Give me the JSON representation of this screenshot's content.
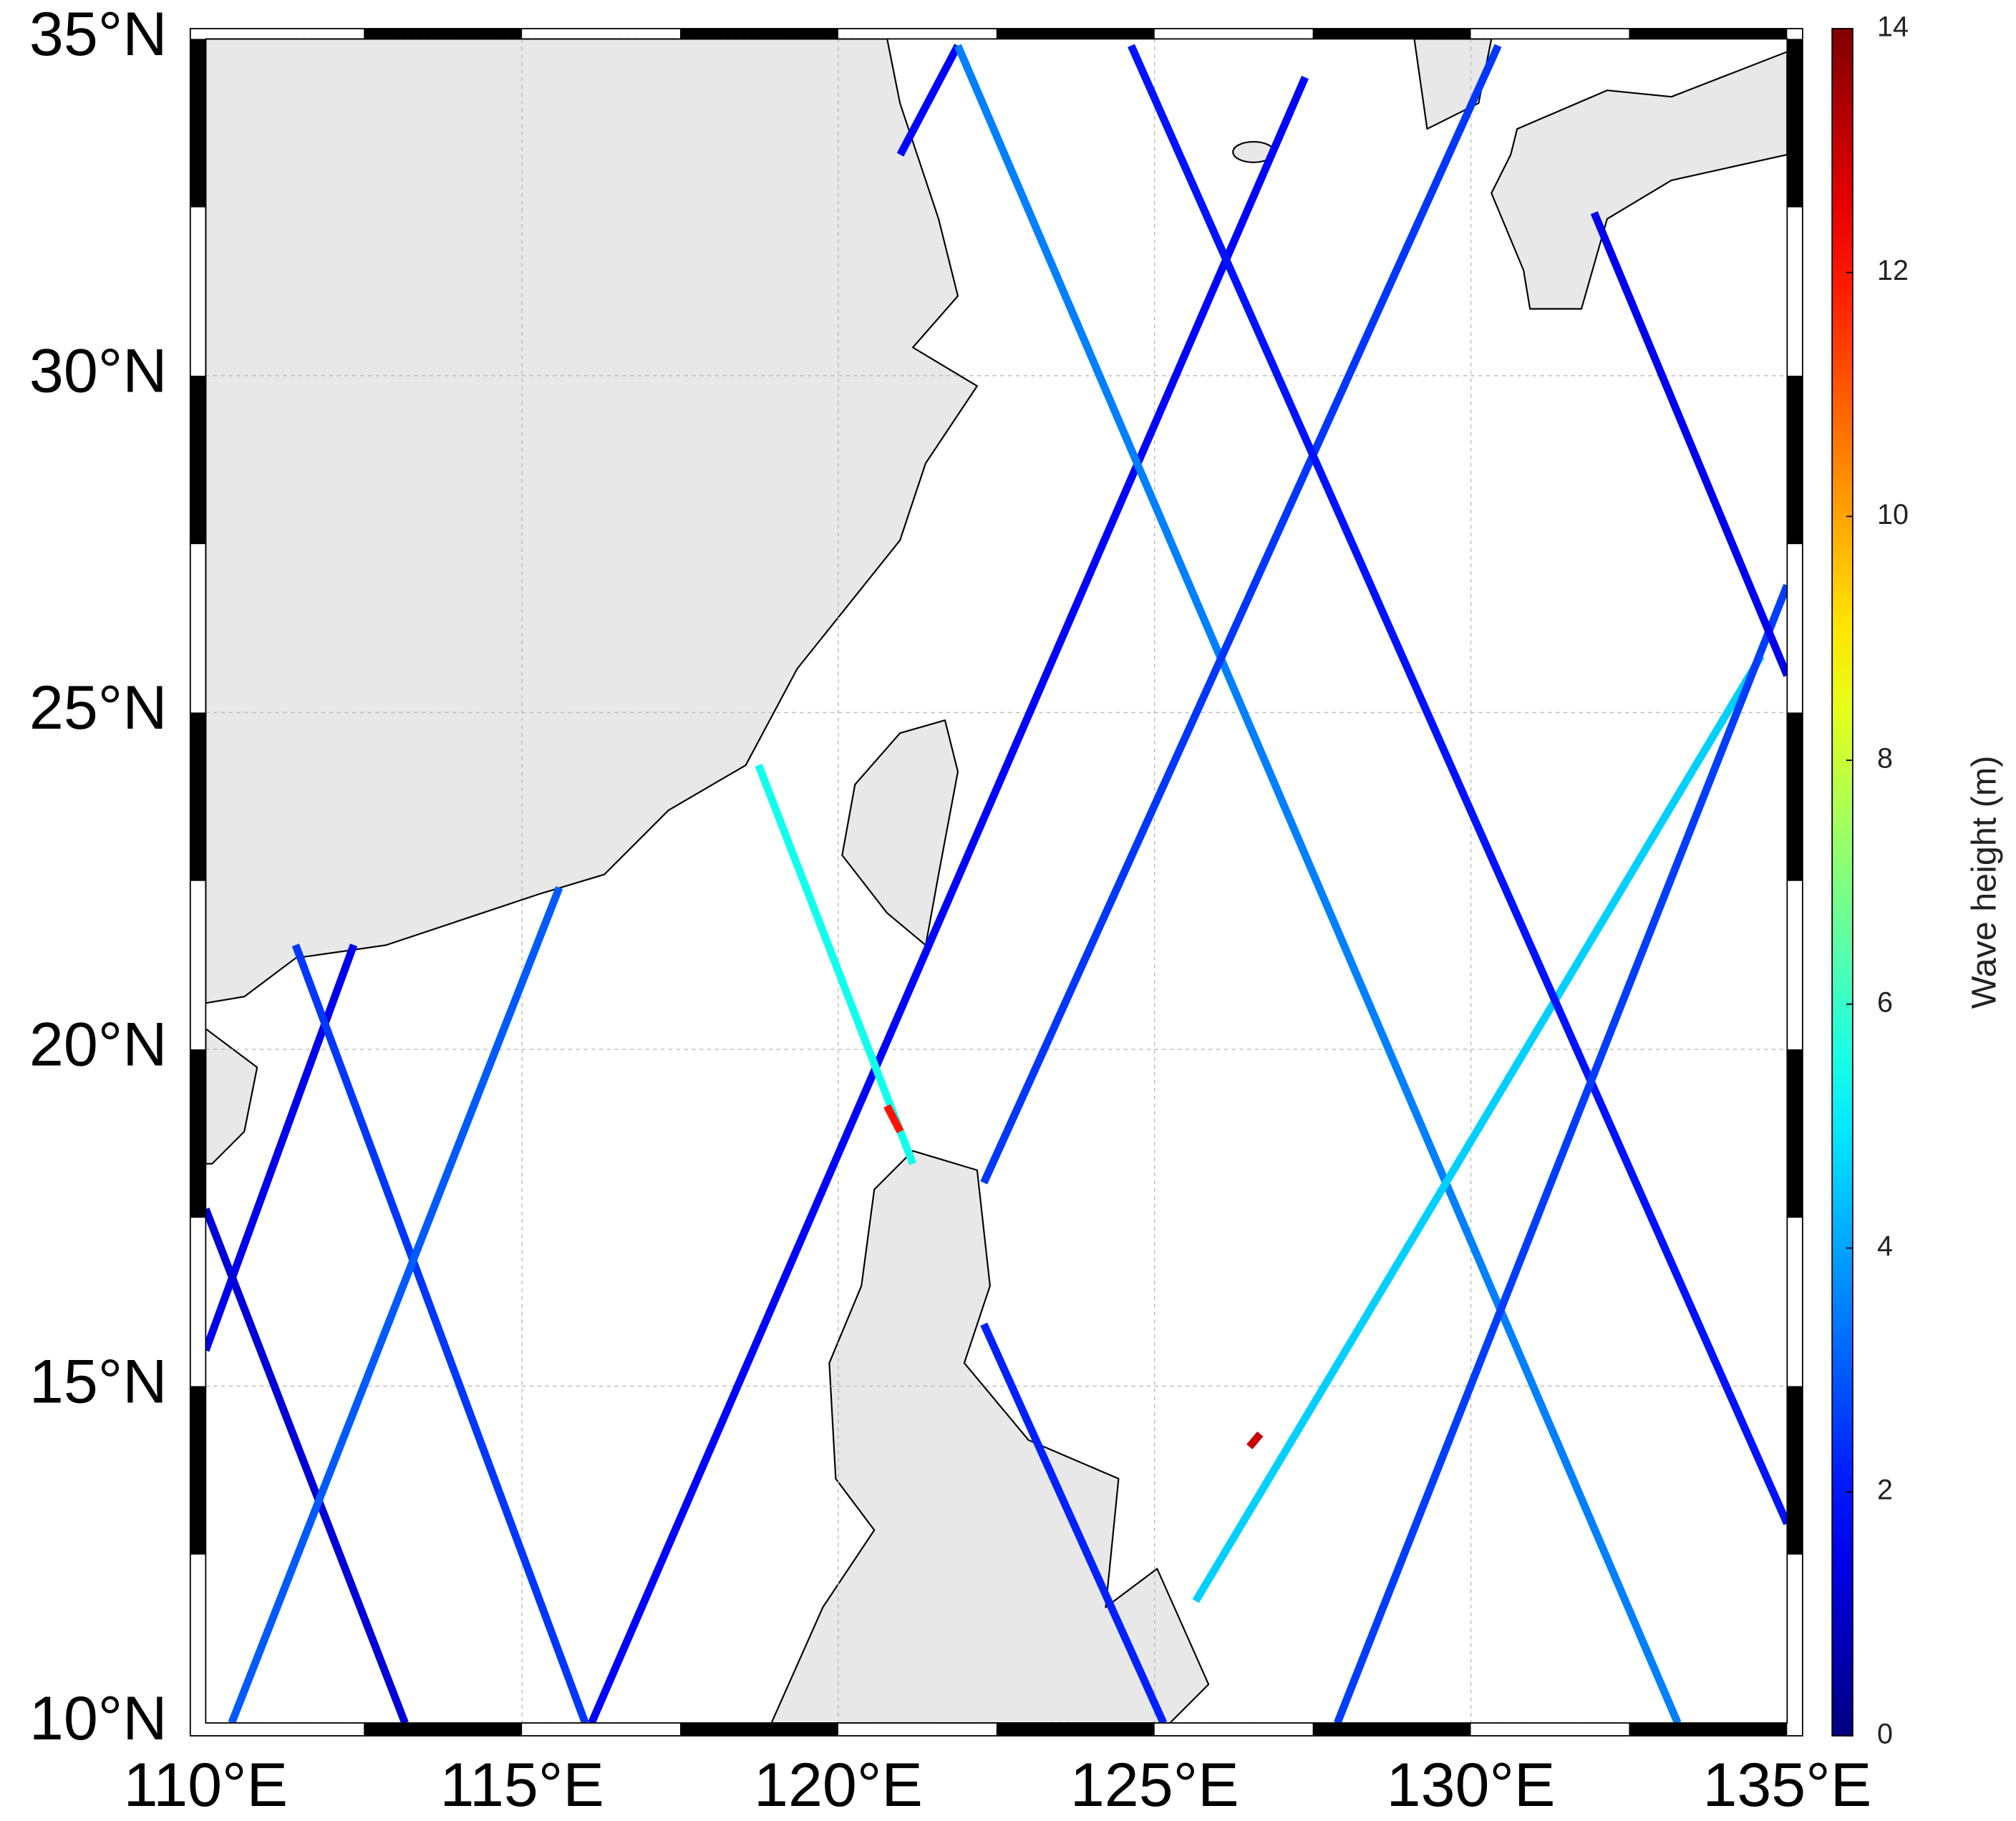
{
  "map": {
    "lon_range": [
      110,
      135
    ],
    "lat_range": [
      10,
      35
    ],
    "lon_ticks": [
      {
        "value": 110,
        "label": "110°E"
      },
      {
        "value": 115,
        "label": "115°E"
      },
      {
        "value": 120,
        "label": "120°E"
      },
      {
        "value": 125,
        "label": "125°E"
      },
      {
        "value": 130,
        "label": "130°E"
      },
      {
        "value": 135,
        "label": "135°E"
      }
    ],
    "lat_ticks": [
      {
        "value": 10,
        "label": "10°N"
      },
      {
        "value": 15,
        "label": "15°N"
      },
      {
        "value": 20,
        "label": "20°N"
      },
      {
        "value": 25,
        "label": "25°N"
      },
      {
        "value": 30,
        "label": "30°N"
      },
      {
        "value": 35,
        "label": "35°N"
      }
    ],
    "tracks": [
      {
        "lon": [
          110.0,
          112.34
        ],
        "lat": [
          15.53,
          21.55
        ],
        "wave_height": 1.5
      },
      {
        "lon": [
          110.0,
          113.15
        ],
        "lat": [
          17.63,
          10.0
        ],
        "wave_height": 1.2
      },
      {
        "lon": [
          111.42,
          116.0
        ],
        "lat": [
          21.55,
          10.0
        ],
        "wave_height": 2.5
      },
      {
        "lon": [
          110.41,
          115.59
        ],
        "lat": [
          10.0,
          22.4
        ],
        "wave_height": 3.0
      },
      {
        "lon": [
          116.1,
          127.38
        ],
        "lat": [
          10.0,
          34.43
        ],
        "wave_height": 1.8
      },
      {
        "lon": [
          120.98,
          121.89
        ],
        "lat": [
          33.28,
          34.9
        ],
        "wave_height": 1.8
      },
      {
        "lon": [
          121.89,
          133.27
        ],
        "lat": [
          34.9,
          10.0
        ],
        "wave_height": 3.5
      },
      {
        "lon": [
          118.74,
          121.18
        ],
        "lat": [
          24.22,
          18.3
        ],
        "wave_height": 5.5
      },
      {
        "lon": [
          122.3,
          125.14
        ],
        "lat": [
          15.92,
          10.0
        ],
        "wave_height": 2.2
      },
      {
        "lon": [
          122.3,
          130.43
        ],
        "lat": [
          18.02,
          34.9
        ],
        "wave_height": 2.5
      },
      {
        "lon": [
          125.65,
          134.59
        ],
        "lat": [
          11.81,
          25.84
        ],
        "wave_height": 4.6
      },
      {
        "lon": [
          124.63,
          135.0
        ],
        "lat": [
          34.9,
          12.96
        ],
        "wave_height": 2.0
      },
      {
        "lon": [
          127.89,
          135.0
        ],
        "lat": [
          10.0,
          26.89
        ],
        "wave_height": 2.6
      },
      {
        "lon": [
          131.95,
          135.0
        ],
        "lat": [
          32.42,
          25.55
        ],
        "wave_height": 1.5
      },
      {
        "lon": [
          120.77,
          120.98
        ],
        "lat": [
          19.16,
          18.78
        ],
        "wave_height": 12
      },
      {
        "lon": [
          126.5,
          126.67
        ],
        "lat": [
          14.1,
          14.29
        ],
        "wave_height": 13
      }
    ]
  },
  "colorbar": {
    "label": "Wave height (m)",
    "range": [
      0,
      14
    ],
    "ticks": [
      0,
      2,
      4,
      6,
      8,
      10,
      12,
      14
    ],
    "colormap": "jet"
  }
}
